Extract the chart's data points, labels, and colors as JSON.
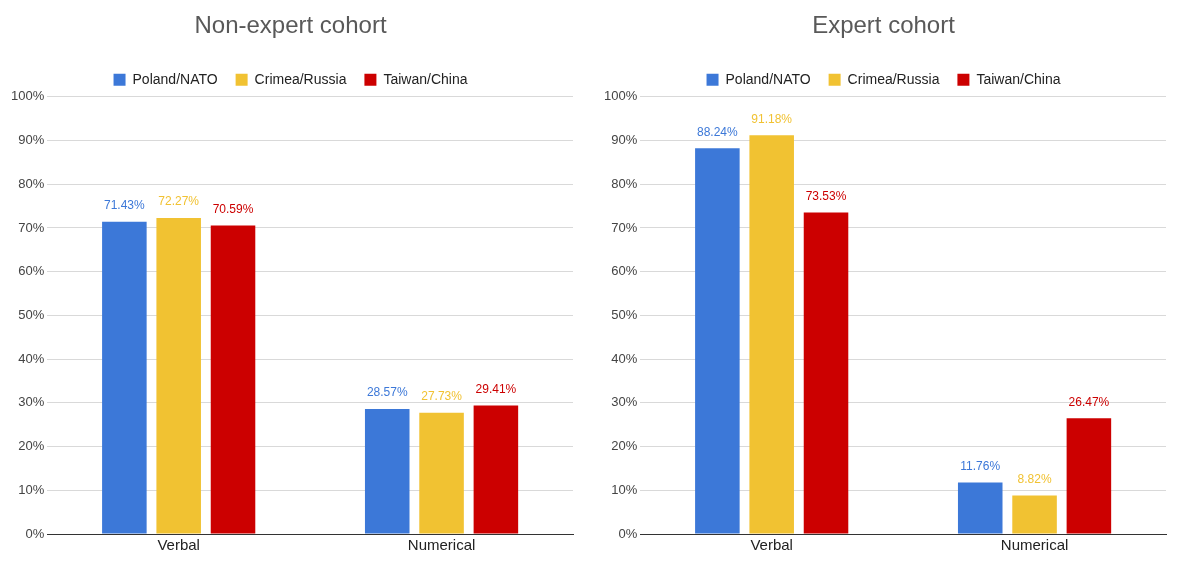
{
  "chart_data": [
    {
      "type": "bar",
      "title": "Non-expert cohort",
      "categories": [
        "Verbal",
        "Numerical"
      ],
      "series": [
        {
          "name": "Poland/NATO",
          "color": "#3c78d8",
          "values": [
            71.43,
            28.57
          ],
          "value_labels": [
            "71.43%",
            "28.57%"
          ]
        },
        {
          "name": "Crimea/Russia",
          "color": "#f1c232",
          "values": [
            72.27,
            27.73
          ],
          "value_labels": [
            "72.27%",
            "27.73%"
          ]
        },
        {
          "name": "Taiwan/China",
          "color": "#cc0000",
          "values": [
            70.59,
            29.41
          ],
          "value_labels": [
            "70.59%",
            "29.41%"
          ]
        }
      ],
      "ylim": [
        0,
        100
      ],
      "yticks": [
        {
          "value": 0,
          "label": "0%"
        },
        {
          "value": 10,
          "label": "10%"
        },
        {
          "value": 20,
          "label": "20%"
        },
        {
          "value": 30,
          "label": "30%"
        },
        {
          "value": 40,
          "label": "40%"
        },
        {
          "value": 50,
          "label": "50%"
        },
        {
          "value": 60,
          "label": "60%"
        },
        {
          "value": 70,
          "label": "70%"
        },
        {
          "value": 80,
          "label": "80%"
        },
        {
          "value": 90,
          "label": "90%"
        },
        {
          "value": 100,
          "label": "100%"
        }
      ],
      "grid": "y",
      "legend": "top"
    },
    {
      "type": "bar",
      "title": "Expert cohort",
      "categories": [
        "Verbal",
        "Numerical"
      ],
      "series": [
        {
          "name": "Poland/NATO",
          "color": "#3c78d8",
          "values": [
            88.24,
            11.76
          ],
          "value_labels": [
            "88.24%",
            "11.76%"
          ]
        },
        {
          "name": "Crimea/Russia",
          "color": "#f1c232",
          "values": [
            91.18,
            8.82
          ],
          "value_labels": [
            "91.18%",
            "8.82%"
          ]
        },
        {
          "name": "Taiwan/China",
          "color": "#cc0000",
          "values": [
            73.53,
            26.47
          ],
          "value_labels": [
            "73.53%",
            "26.47%"
          ]
        }
      ],
      "ylim": [
        0,
        100
      ],
      "yticks": [
        {
          "value": 0,
          "label": "0%"
        },
        {
          "value": 10,
          "label": "10%"
        },
        {
          "value": 20,
          "label": "20%"
        },
        {
          "value": 30,
          "label": "30%"
        },
        {
          "value": 40,
          "label": "40%"
        },
        {
          "value": 50,
          "label": "50%"
        },
        {
          "value": 60,
          "label": "60%"
        },
        {
          "value": 70,
          "label": "70%"
        },
        {
          "value": 80,
          "label": "80%"
        },
        {
          "value": 90,
          "label": "90%"
        },
        {
          "value": 100,
          "label": "100%"
        }
      ],
      "grid": "y",
      "legend": "top"
    }
  ]
}
